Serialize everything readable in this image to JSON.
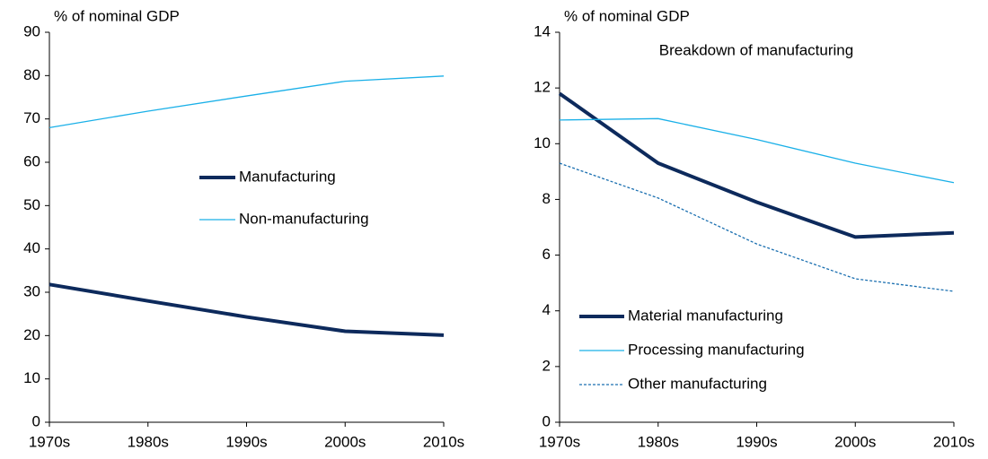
{
  "chart_data": [
    {
      "type": "line",
      "ylabel": "% of nominal GDP",
      "categories": [
        "1970s",
        "1980s",
        "1990s",
        "2000s",
        "2010s"
      ],
      "series": [
        {
          "name": "Manufacturing",
          "color": "#0d2a5c",
          "linewidth": 4,
          "linestyle": "solid",
          "values": [
            31.8,
            28.0,
            24.3,
            21.0,
            20.1
          ]
        },
        {
          "name": "Non-manufacturing",
          "color": "#1ab0e8",
          "linewidth": 1.3,
          "linestyle": "solid",
          "values": [
            68.0,
            71.8,
            75.3,
            78.7,
            79.9
          ]
        }
      ],
      "ylim": [
        0,
        90
      ],
      "yticks": [
        0,
        10,
        20,
        30,
        40,
        50,
        60,
        70,
        80,
        90
      ],
      "grid": false,
      "legend": "center"
    },
    {
      "type": "line",
      "ylabel": "% of nominal GDP",
      "annotation": "Breakdown of manufacturing",
      "categories": [
        "1970s",
        "1980s",
        "1990s",
        "2000s",
        "2010s"
      ],
      "series": [
        {
          "name": "Material manufacturing",
          "color": "#0d2a5c",
          "linewidth": 4,
          "linestyle": "solid",
          "values": [
            11.8,
            9.3,
            7.9,
            6.65,
            6.8
          ]
        },
        {
          "name": "Processing manufacturing",
          "color": "#1ab0e8",
          "linewidth": 1.3,
          "linestyle": "solid",
          "values": [
            10.85,
            10.9,
            10.15,
            9.3,
            8.6
          ]
        },
        {
          "name": "Other manufacturing",
          "color": "#1a6fb0",
          "linewidth": 1.3,
          "linestyle": "dashed",
          "values": [
            9.3,
            8.05,
            6.4,
            5.15,
            4.7
          ]
        }
      ],
      "ylim": [
        0,
        14
      ],
      "yticks": [
        0,
        2,
        4,
        6,
        8,
        10,
        12,
        14
      ],
      "grid": false,
      "legend": "bottom-left"
    }
  ]
}
